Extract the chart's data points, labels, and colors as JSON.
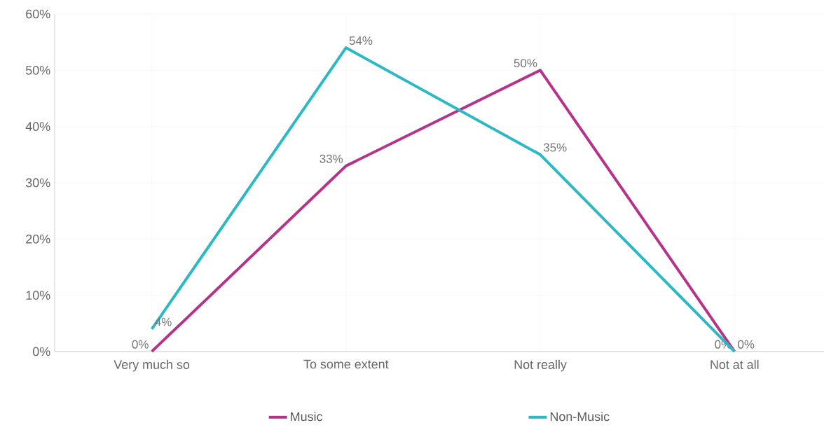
{
  "chart_data": {
    "type": "line",
    "categories": [
      "Very much so",
      "To some extent",
      "Not really",
      "Not at all"
    ],
    "series": [
      {
        "name": "Music",
        "color": "#b5338a",
        "values": [
          0,
          33,
          50,
          0
        ],
        "value_labels": [
          "0%",
          "33%",
          "50%",
          "0%"
        ]
      },
      {
        "name": "Non-Music",
        "color": "#2cb8c4",
        "values": [
          4,
          54,
          35,
          0
        ],
        "value_labels": [
          "4%",
          "54%",
          "35%",
          "0%"
        ]
      }
    ],
    "ylim": [
      0,
      60
    ],
    "yticks": [
      {
        "value": 0,
        "label": "0%"
      },
      {
        "value": 10,
        "label": "10%"
      },
      {
        "value": 20,
        "label": "20%"
      },
      {
        "value": 30,
        "label": "30%"
      },
      {
        "value": 40,
        "label": "40%"
      },
      {
        "value": 50,
        "label": "50%"
      },
      {
        "value": 60,
        "label": "60%"
      }
    ],
    "grid": true,
    "legend": "bottom",
    "marker": "none",
    "line_style": "solid"
  }
}
